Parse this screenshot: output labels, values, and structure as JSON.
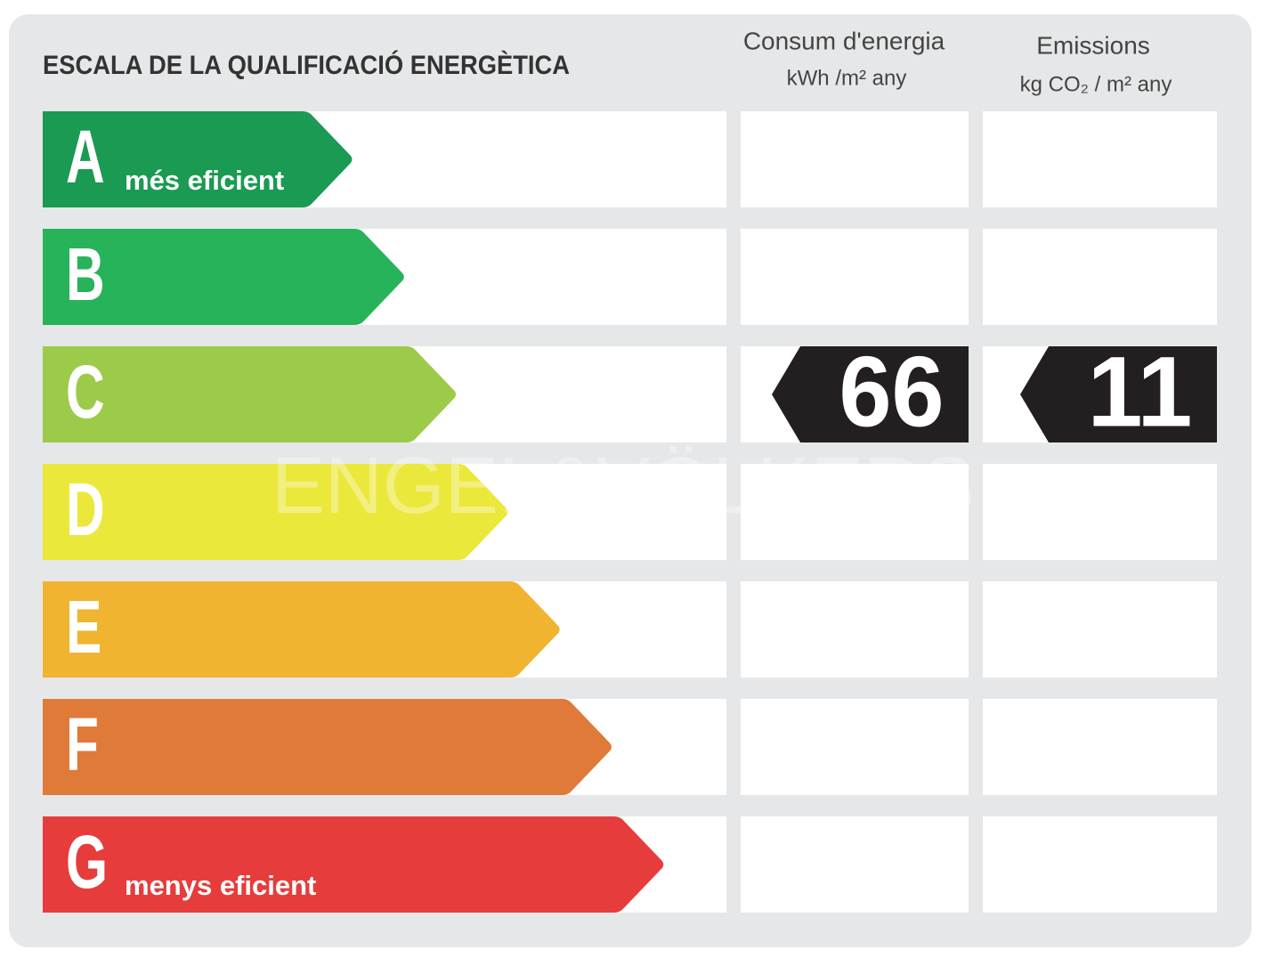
{
  "title": "ESCALA DE LA QUALIFICACIÓ ENERGÈTICA",
  "columns": [
    {
      "title": "Consum d'energia",
      "unit": "kWh /m² any"
    },
    {
      "title": "Emissions",
      "unit": "kg CO₂ / m² any"
    }
  ],
  "ratings": [
    {
      "letter": "A",
      "label": "més eficient",
      "color": "#1a9a52"
    },
    {
      "letter": "B",
      "color": "#27b35a"
    },
    {
      "letter": "C",
      "color": "#9ccb4a"
    },
    {
      "letter": "D",
      "color": "#ebe83c"
    },
    {
      "letter": "E",
      "color": "#f0b431"
    },
    {
      "letter": "F",
      "color": "#e07a39"
    },
    {
      "letter": "G",
      "label": "menys eficient",
      "color": "#e63c3c"
    }
  ],
  "results": [
    {
      "rating": "C",
      "value": 66
    },
    {
      "rating": "C",
      "value": 11
    }
  ],
  "watermark": "ENGEL&VÖLKERS"
}
